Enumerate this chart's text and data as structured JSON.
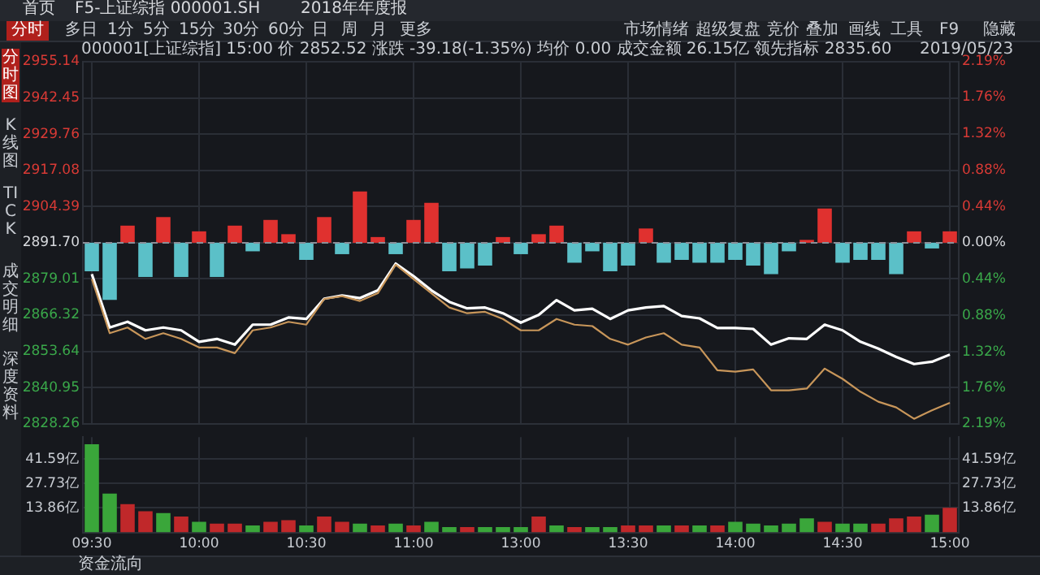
{
  "chart_data": [
    {
      "type": "line",
      "subtitle": "000001[上证综指] 15:00 价 2852.52 涨跌 -39.18(-1.35%) 均价 0.00 成交金额 26.15亿 领先指标 2835.60",
      "annotations": [
        "首页",
        "F5-上证综指 000001.SH",
        "2018年年度报",
        "分时",
        "多日",
        "1分",
        "5分",
        "15分",
        "30分",
        "60分",
        "日",
        "周",
        "月",
        "更多",
        "市场情绪",
        "超级复盘",
        "竞价",
        "叠加",
        "画线",
        "工具",
        "F9",
        "隐藏",
        "分时图",
        "K线图",
        "TICK",
        "成交明细",
        "深度资料",
        "资金流向",
        "2019/05/23"
      ],
      "categories": [
        null,
        null,
        null,
        null,
        null,
        null,
        null,
        null,
        null,
        null,
        null,
        null,
        null,
        null,
        null,
        null,
        null,
        null,
        null,
        null,
        null,
        null,
        null,
        null,
        null,
        null,
        null,
        null,
        null,
        null,
        null,
        null,
        null,
        null,
        null,
        null,
        null,
        null,
        null,
        null,
        null,
        null,
        null,
        null,
        null,
        null,
        null,
        null,
        null
      ],
      "ylim": [
        2828.26,
        2955.14
      ],
      "yticks": [
        2828.26,
        2840.95,
        2853.64,
        2866.32,
        2879.01,
        {
          "value": 2891.7,
          "label": "2891.70"
        },
        2904.39,
        2917.08,
        2929.76,
        2942.45,
        2955.14
      ],
      "y2lim": [
        -2.19,
        2.19
      ],
      "y2ticks": [
        {
          "value": -2.19,
          "label": "2.19%"
        },
        {
          "value": -1.76,
          "label": "1.76%"
        },
        {
          "value": -1.32,
          "label": "1.32%"
        },
        {
          "value": -0.88,
          "label": "0.88%"
        },
        {
          "value": -0.44,
          "label": "0.44%"
        },
        {
          "value": 0,
          "label": "0.00%"
        },
        {
          "value": 0.44,
          "label": "0.44%"
        },
        {
          "value": 0.88,
          "label": "0.88%"
        },
        {
          "value": 1.32,
          "label": "1.32%"
        },
        {
          "value": 1.76,
          "label": "1.76%"
        },
        {
          "value": 2.19,
          "label": "2.19%"
        }
      ],
      "ref_lines": [
        {
          "axis": "y",
          "value": 2891.7,
          "color": "#8a8f98",
          "line_style": "dashed"
        }
      ],
      "grid": true,
      "legend": false,
      "marker": "none",
      "line_style": "solid",
      "tick_labels": "y",
      "series": [
        {
          "type": "bar",
          "base": [
            2891.7,
            2891.7,
            2891.7,
            2891.7,
            2891.7,
            2891.7,
            2891.7,
            2891.7,
            2891.7,
            2891.7,
            2891.7,
            2891.7,
            2891.7,
            2891.7,
            2891.7,
            2891.7,
            2891.7,
            2891.7,
            2891.7,
            2891.7,
            2891.7,
            2891.7,
            2891.7,
            2891.7,
            2891.7,
            2891.7,
            2891.7,
            2891.7,
            2891.7,
            2891.7,
            2891.7,
            2891.7,
            2891.7,
            2891.7,
            2891.7,
            2891.7,
            2891.7,
            2891.7,
            2891.7,
            2891.7,
            2891.7,
            2891.7,
            2891.7,
            2891.7,
            2891.7,
            2891.7,
            2891.7,
            2891.7,
            2891.7
          ],
          "values": [
            -10,
            -20,
            6,
            -12,
            9,
            -12,
            4,
            -12,
            6,
            -3,
            8,
            3,
            -6,
            9,
            -4,
            18,
            2,
            -4,
            8,
            14,
            -10,
            -9,
            -8,
            2,
            -4,
            3,
            6,
            -7,
            -3,
            -10,
            -8,
            5,
            -7,
            -6,
            -7,
            -7,
            -6,
            -8,
            -11,
            -3,
            1,
            12,
            -7,
            -6,
            -6,
            -11,
            4,
            -2,
            4
          ],
          "colors": [
            "#5bc0c8",
            "#5bc0c8",
            "#e0312f",
            "#5bc0c8",
            "#e0312f",
            "#5bc0c8",
            "#e0312f",
            "#5bc0c8",
            "#e0312f",
            "#5bc0c8",
            "#e0312f",
            "#e0312f",
            "#5bc0c8",
            "#e0312f",
            "#5bc0c8",
            "#e0312f",
            "#e0312f",
            "#5bc0c8",
            "#e0312f",
            "#e0312f",
            "#5bc0c8",
            "#5bc0c8",
            "#5bc0c8",
            "#e0312f",
            "#5bc0c8",
            "#e0312f",
            "#e0312f",
            "#5bc0c8",
            "#5bc0c8",
            "#5bc0c8",
            "#5bc0c8",
            "#e0312f",
            "#5bc0c8",
            "#5bc0c8",
            "#5bc0c8",
            "#5bc0c8",
            "#5bc0c8",
            "#5bc0c8",
            "#5bc0c8",
            "#5bc0c8",
            "#e0312f",
            "#e0312f",
            "#5bc0c8",
            "#5bc0c8",
            "#5bc0c8",
            "#5bc0c8",
            "#e0312f",
            "#5bc0c8",
            "#e0312f"
          ]
        },
        {
          "type": "line",
          "color": "#c8965a",
          "values": [
            2879,
            2860,
            2862,
            2858,
            2860,
            2858,
            2855,
            2855,
            2853,
            2861,
            2862,
            2864,
            2863,
            2872,
            2873,
            2871.3,
            2874,
            2884,
            2879,
            2874,
            2869,
            2867,
            2867.5,
            2865,
            2861,
            2861,
            2865,
            2863,
            2862.5,
            2858,
            2856,
            2858.5,
            2860,
            2856,
            2855,
            2847,
            2846.5,
            2847.3,
            2840,
            2840,
            2840.6,
            2847.6,
            2844,
            2839.5,
            2836,
            2834,
            2830,
            2833,
            2835.6
          ]
        },
        {
          "type": "line",
          "color": "#ffffff",
          "values": [
            2880.7,
            2862,
            2864,
            2861,
            2862,
            2861,
            2857,
            2858,
            2856,
            2863,
            2863,
            2865.5,
            2865,
            2872.1,
            2873.2,
            2872.3,
            2875,
            2884.4,
            2880,
            2875,
            2871,
            2868.7,
            2869,
            2867,
            2863.7,
            2866.4,
            2871.6,
            2868,
            2868.6,
            2865,
            2868,
            2869,
            2869.5,
            2866,
            2865.2,
            2861.8,
            2861.8,
            2861.5,
            2856,
            2858.2,
            2858,
            2863,
            2861,
            2857,
            2854.6,
            2851.7,
            2849.2,
            2850,
            2852.5
          ]
        }
      ]
    },
    {
      "type": "bar",
      "grid": true,
      "legend": false,
      "categories": [
        "09:30",
        null,
        null,
        null,
        null,
        null,
        "10:00",
        null,
        null,
        null,
        null,
        null,
        "10:30",
        null,
        null,
        null,
        null,
        null,
        "11:00",
        null,
        null,
        null,
        null,
        null,
        "13:00",
        null,
        null,
        null,
        null,
        null,
        "13:30",
        null,
        null,
        null,
        null,
        null,
        "14:00",
        null,
        null,
        null,
        null,
        null,
        "14:30",
        null,
        null,
        null,
        null,
        null,
        "15:00"
      ],
      "ylim": [
        0,
        54
      ],
      "yticks": [
        {
          "value": 13.86,
          "label": "13.86亿"
        },
        {
          "value": 27.73,
          "label": "27.73亿"
        },
        {
          "value": 41.59,
          "label": "41.59亿"
        }
      ],
      "y2lim": [
        0,
        54
      ],
      "y2ticks": [
        {
          "value": 13.86,
          "label": "13.86亿"
        },
        {
          "value": 27.73,
          "label": "27.73亿"
        },
        {
          "value": 41.59,
          "label": "41.59亿"
        }
      ],
      "values": [
        50,
        22,
        16,
        12,
        11,
        9,
        6,
        5,
        5,
        4,
        6,
        7,
        4,
        9,
        6,
        5,
        4,
        5,
        4,
        6,
        3,
        3,
        3,
        3,
        3,
        9,
        4,
        3,
        3,
        3,
        4,
        4,
        4,
        4,
        4,
        4,
        6,
        5,
        4,
        5,
        8,
        6,
        5,
        5,
        5,
        8,
        9,
        10,
        14
      ],
      "colors": [
        "#3aa63a",
        "#3aa63a",
        "#c0282a",
        "#c0282a",
        "#3aa63a",
        "#c0282a",
        "#3aa63a",
        "#c0282a",
        "#c0282a",
        "#3aa63a",
        "#c0282a",
        "#c0282a",
        "#3aa63a",
        "#c0282a",
        "#c0282a",
        "#3aa63a",
        "#c0282a",
        "#3aa63a",
        "#c0282a",
        "#3aa63a",
        "#3aa63a",
        "#c0282a",
        "#3aa63a",
        "#3aa63a",
        "#3aa63a",
        "#c0282a",
        "#3aa63a",
        "#c0282a",
        "#3aa63a",
        "#3aa63a",
        "#c0282a",
        "#c0282a",
        "#3aa63a",
        "#c0282a",
        "#3aa63a",
        "#c0282a",
        "#3aa63a",
        "#3aa63a",
        "#3aa63a",
        "#3aa63a",
        "#3aa63a",
        "#c0282a",
        "#3aa63a",
        "#3aa63a",
        "#c0282a",
        "#c0282a",
        "#c0282a",
        "#3aa63a",
        "#c0282a"
      ]
    }
  ]
}
